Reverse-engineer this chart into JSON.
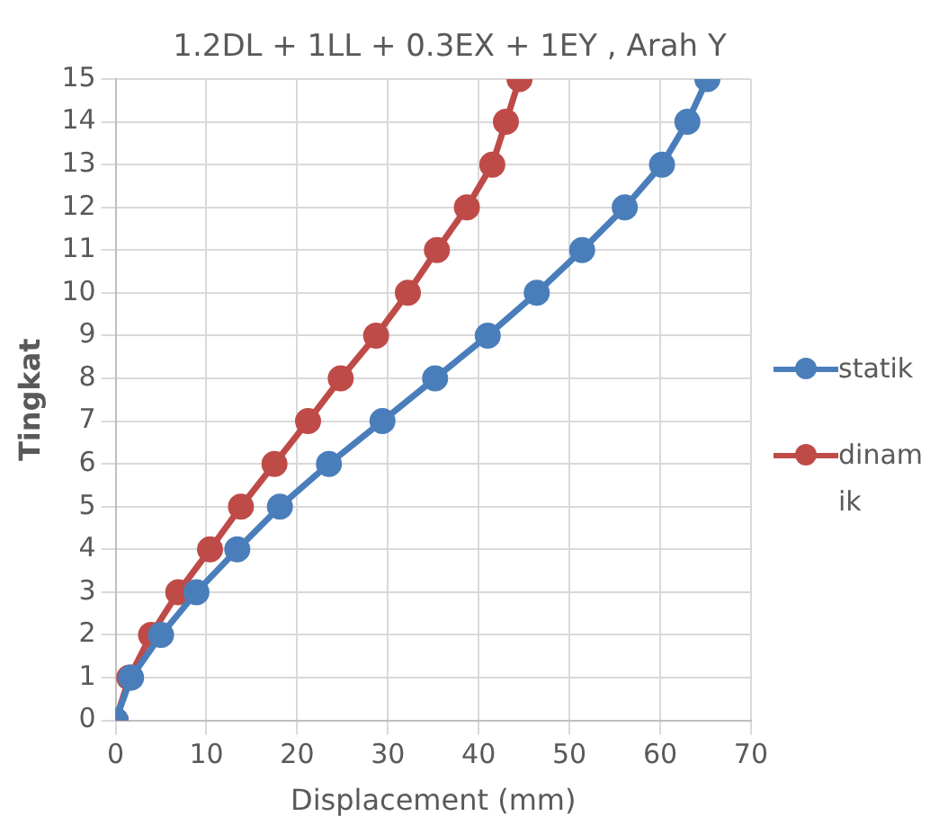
{
  "chart_data": {
    "type": "line",
    "title": "1.2DL + 1LL + 0.3EX + 1EY , Arah Y",
    "xlabel": "Displacement (mm)",
    "ylabel": "Tingkat",
    "xlim": [
      0,
      70
    ],
    "xticks": [
      0,
      10,
      20,
      30,
      40,
      50,
      60,
      70
    ],
    "ylim": [
      0,
      15
    ],
    "yticks": [
      0,
      1,
      2,
      3,
      4,
      5,
      6,
      7,
      8,
      9,
      10,
      11,
      12,
      13,
      14,
      15
    ],
    "grid": true,
    "legend": "right",
    "marker": "circle",
    "series": [
      {
        "name": "statik",
        "color": "#4a7ebb",
        "x": [
          0,
          1.7,
          5,
          8.9,
          13.4,
          18.1,
          23.5,
          29.4,
          35.2,
          41,
          46.4,
          51.4,
          56.1,
          60.2,
          63,
          65.2
        ],
        "values": [
          0,
          1,
          2,
          3,
          4,
          5,
          6,
          7,
          8,
          9,
          10,
          11,
          12,
          13,
          14,
          15
        ]
      },
      {
        "name": "dinamik",
        "color": "#be4b48",
        "x": [
          0,
          1.5,
          3.9,
          6.9,
          10.4,
          13.8,
          17.5,
          21.2,
          24.8,
          28.7,
          32.2,
          35.4,
          38.7,
          41.5,
          43,
          44.5
        ],
        "values": [
          0,
          1,
          2,
          3,
          4,
          5,
          6,
          7,
          8,
          9,
          10,
          11,
          12,
          13,
          14,
          15
        ]
      }
    ]
  }
}
